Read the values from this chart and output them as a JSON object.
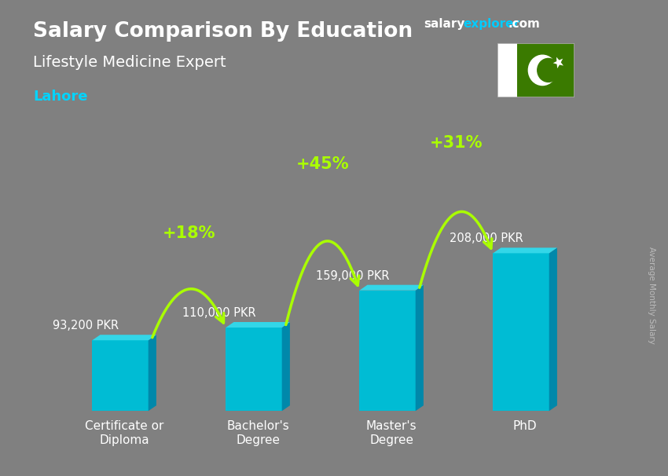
{
  "title": "Salary Comparison By Education",
  "subtitle": "Lifestyle Medicine Expert",
  "city": "Lahore",
  "categories": [
    "Certificate or\nDiploma",
    "Bachelor's\nDegree",
    "Master's\nDegree",
    "PhD"
  ],
  "values": [
    93200,
    110000,
    159000,
    208000
  ],
  "labels": [
    "93,200 PKR",
    "110,000 PKR",
    "159,000 PKR",
    "208,000 PKR"
  ],
  "pct_changes": [
    "+18%",
    "+45%",
    "+31%"
  ],
  "bar_face_color": "#00bcd4",
  "bar_side_color": "#0088aa",
  "bar_top_color": "#33d6e8",
  "background_color": "#808080",
  "title_color": "#ffffff",
  "subtitle_color": "#ffffff",
  "city_color": "#00d4ff",
  "label_color": "#ffffff",
  "pct_color": "#aaff00",
  "arrow_color": "#aaff00",
  "ylabel": "Average Monthly Salary",
  "ylabel_color": "#bbbbbb",
  "site_salary_color": "#ffffff",
  "site_explorer_color": "#00ccff",
  "site_com_color": "#ffffff",
  "figsize": [
    8.5,
    6.06
  ],
  "dpi": 100
}
